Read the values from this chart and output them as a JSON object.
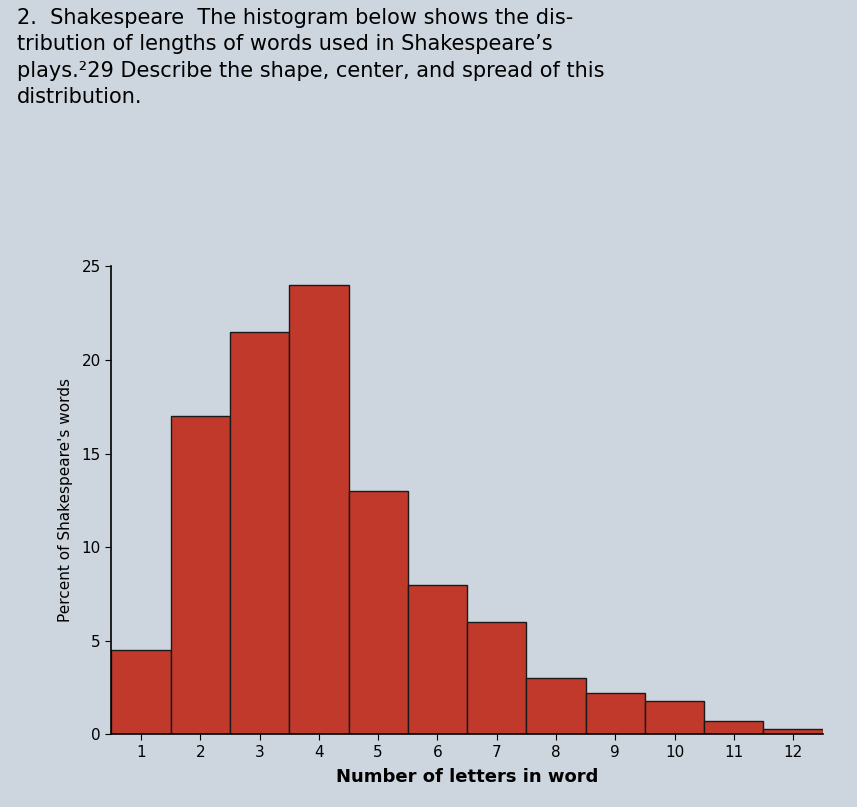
{
  "categories": [
    1,
    2,
    3,
    4,
    5,
    6,
    7,
    8,
    9,
    10,
    11,
    12
  ],
  "values": [
    4.5,
    17.0,
    21.5,
    24.0,
    13.0,
    8.0,
    6.0,
    3.0,
    2.2,
    1.8,
    0.7,
    0.3
  ],
  "bar_color": "#c1392b",
  "bar_edge_color": "#1a1a1a",
  "xlabel": "Number of letters in word",
  "ylabel": "Percent of Shakespeare's words",
  "ylim": [
    0,
    25
  ],
  "yticks": [
    0,
    5,
    10,
    15,
    20,
    25
  ],
  "xticks": [
    1,
    2,
    3,
    4,
    5,
    6,
    7,
    8,
    9,
    10,
    11,
    12
  ],
  "background_color": "#cdd5de",
  "xlabel_fontsize": 13,
  "ylabel_fontsize": 11,
  "tick_fontsize": 11,
  "header_text": "2.  Shakespeare  The histogram below shows the dis-\ntribution of lengths of words used in Shakespeare’s\nplays.²29 Describe the shape, center, and spread of this\ndistribution.",
  "header_fontsize": 15
}
